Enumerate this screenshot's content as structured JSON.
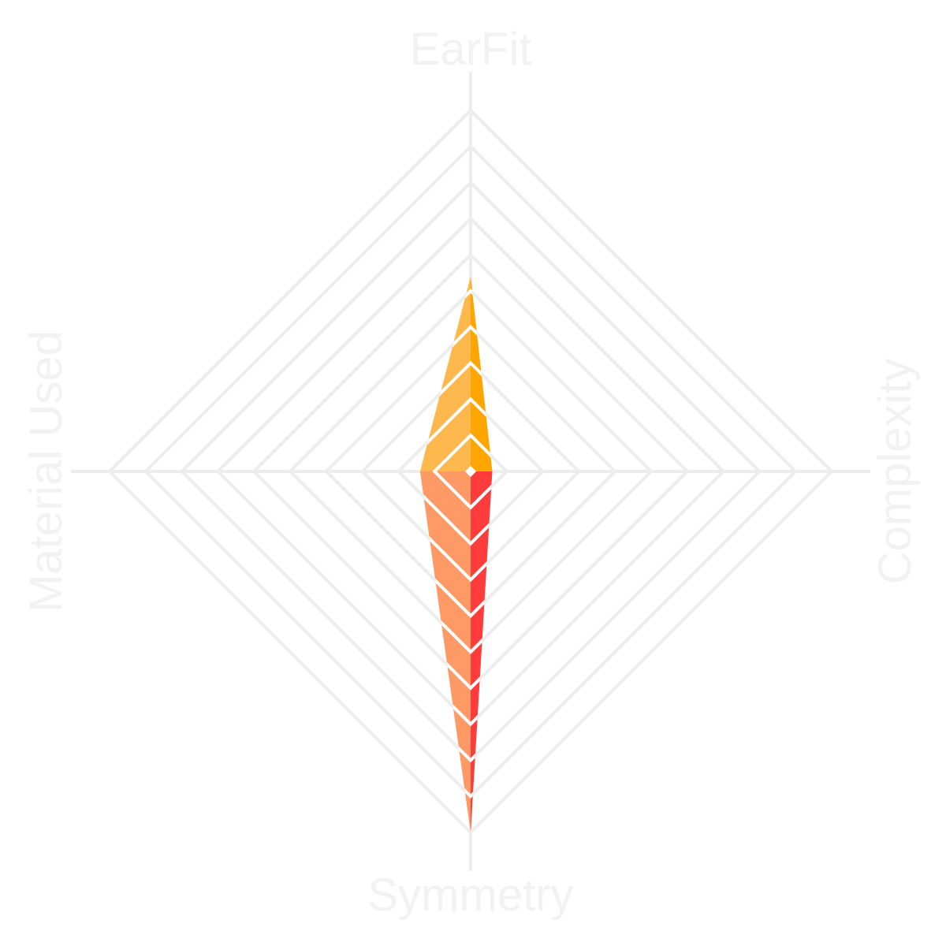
{
  "chart_data": {
    "type": "radar",
    "axes": [
      "EarFit",
      "Complexity",
      "Symmetry",
      "Material Used"
    ],
    "max": 10,
    "grid_levels": 10,
    "grid": true,
    "legend": "none",
    "series": [
      {
        "values": [
          5.4,
          0.6,
          10,
          1.4
        ],
        "color_light_top": "#ffb84d",
        "color_dark_top": "#ffa500",
        "color_light_bottom": "#ff9966",
        "color_dark_bottom": "#ff3c3c"
      }
    ],
    "grid_color": "#ededed",
    "label_color": "#f2f2f2"
  }
}
